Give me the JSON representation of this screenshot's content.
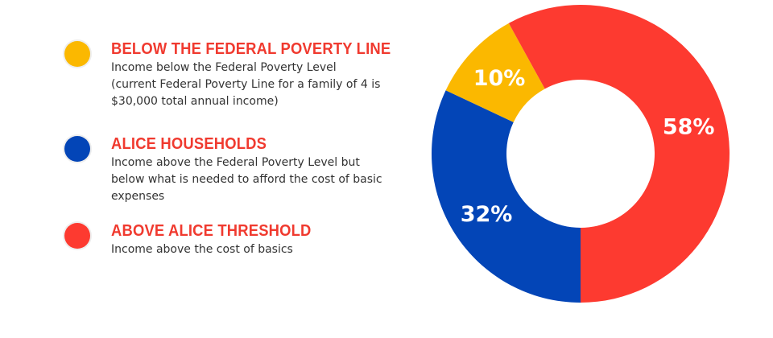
{
  "legend": [
    {
      "title": "BELOW THE FEDERAL POVERTY LINE",
      "description": "Income below the Federal Poverty Level (current Federal Poverty Line for a family of 4 is $30,000 total annual income)",
      "color": "#fbb800"
    },
    {
      "title": "ALICE HOUSEHOLDS",
      "description": "Income above the Federal Poverty Level but below what is needed to afford the cost of basic expenses",
      "color": "#0345b7"
    },
    {
      "title": "ABOVE ALICE THRESHOLD",
      "description": "Income above the cost of basics",
      "color": "#fd3a30"
    }
  ],
  "chart_data": {
    "type": "pie",
    "donut": true,
    "categories": [
      "ALICE HOUSEHOLDS",
      "BELOW THE FEDERAL POVERTY LINE",
      "ABOVE ALICE THRESHOLD"
    ],
    "values": [
      32,
      10,
      58
    ],
    "labels": [
      "32%",
      "10%",
      "58%"
    ],
    "colors": [
      "#0345b7",
      "#fbb800",
      "#fd3a30"
    ]
  }
}
